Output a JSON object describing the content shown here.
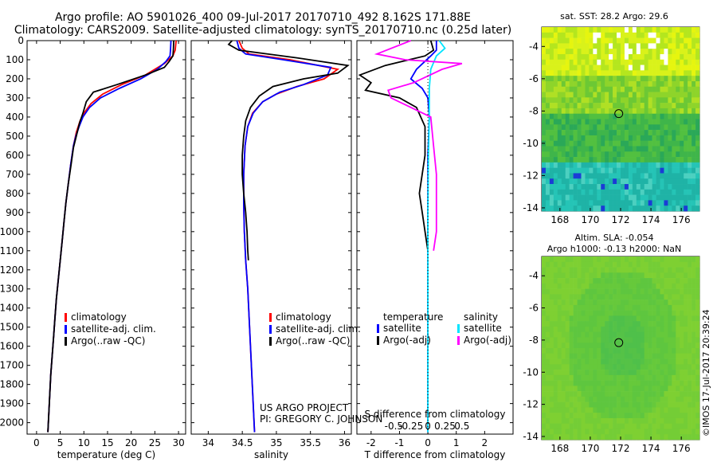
{
  "figure": {
    "title_line1": "Argo profile: AO 5901026_400 09-Jul-2017 20170710_492 8.162S 171.88E",
    "title_line2": "Climatology: CARS2009. Satellite-adjusted climatology: synTS_20170710.nc (0.25d later)",
    "credit_line1": "US ARGO PROJECT",
    "credit_line2": "PI: GREGORY C. JOHNSON",
    "timestamp": "©IMOS 17-Jul-2017 20:39:24",
    "colors": {
      "climatology": "#ff0000",
      "satellite": "#0000ff",
      "argo": "#000000",
      "satellite_salinity": "#00e5ff",
      "argo_salinity_diff": "#ff00ff"
    }
  },
  "chart_data": [
    {
      "type": "line",
      "panel": "temperature",
      "xlabel": "temperature (deg C)",
      "x_ticks": [
        0,
        5,
        10,
        15,
        20,
        25,
        30
      ],
      "xlim": [
        -2,
        31.5
      ],
      "ylim": [
        2060,
        0
      ],
      "y_ticks": [
        0,
        100,
        200,
        300,
        400,
        500,
        600,
        700,
        800,
        900,
        1000,
        1100,
        1200,
        1300,
        1400,
        1500,
        1600,
        1700,
        1800,
        1900,
        2000
      ],
      "legend": [
        "climatology",
        "satellite-adj. clim.",
        "Argo(..raw -QC)"
      ],
      "series": [
        {
          "name": "climatology",
          "color": "#ff0000",
          "points": [
            [
              29.5,
              0
            ],
            [
              29.3,
              50
            ],
            [
              28.8,
              80
            ],
            [
              27,
              120
            ],
            [
              23,
              180
            ],
            [
              18,
              230
            ],
            [
              14,
              280
            ],
            [
              11.5,
              330
            ],
            [
              10,
              380
            ],
            [
              9.2,
              420
            ],
            [
              8.4,
              480
            ],
            [
              7.8,
              550
            ],
            [
              7.2,
              650
            ],
            [
              6.7,
              750
            ],
            [
              6.2,
              850
            ],
            [
              5.8,
              950
            ],
            [
              5.4,
              1050
            ],
            [
              5,
              1150
            ],
            [
              4.6,
              1250
            ],
            [
              4.2,
              1350
            ],
            [
              3.9,
              1450
            ],
            [
              3.6,
              1550
            ],
            [
              3.3,
              1650
            ],
            [
              3,
              1750
            ],
            [
              2.8,
              1850
            ],
            [
              2.6,
              1950
            ],
            [
              2.4,
              2050
            ]
          ]
        },
        {
          "name": "satellite-adj. clim.",
          "color": "#0000ff",
          "points": [
            [
              28.4,
              0
            ],
            [
              28.3,
              50
            ],
            [
              28.2,
              80
            ],
            [
              27.3,
              110
            ],
            [
              25.5,
              150
            ],
            [
              22,
              200
            ],
            [
              17.5,
              250
            ],
            [
              13.5,
              300
            ],
            [
              11.2,
              350
            ],
            [
              9.8,
              400
            ],
            [
              9,
              450
            ],
            [
              8.3,
              500
            ],
            [
              7.8,
              550
            ],
            [
              7.2,
              650
            ],
            [
              6.7,
              750
            ],
            [
              6.2,
              850
            ],
            [
              5.8,
              950
            ],
            [
              5.4,
              1050
            ],
            [
              5,
              1150
            ],
            [
              4.6,
              1250
            ],
            [
              4.2,
              1350
            ],
            [
              3.9,
              1450
            ],
            [
              3.6,
              1550
            ],
            [
              3.3,
              1650
            ],
            [
              3,
              1750
            ],
            [
              2.8,
              1850
            ],
            [
              2.6,
              1950
            ],
            [
              2.4,
              2050
            ]
          ]
        },
        {
          "name": "Argo(..raw -QC)",
          "color": "#000000",
          "points": [
            [
              29,
              0
            ],
            [
              28.9,
              50
            ],
            [
              28.8,
              80
            ],
            [
              28,
              110
            ],
            [
              27,
              140
            ],
            [
              23,
              180
            ],
            [
              17,
              230
            ],
            [
              12,
              270
            ],
            [
              10.5,
              320
            ],
            [
              9.8,
              380
            ],
            [
              9.1,
              430
            ],
            [
              8.4,
              500
            ],
            [
              7.8,
              560
            ],
            [
              7.3,
              650
            ],
            [
              6.7,
              750
            ],
            [
              6.2,
              850
            ],
            [
              5.8,
              950
            ],
            [
              5.4,
              1050
            ],
            [
              5,
              1150
            ],
            [
              4.6,
              1250
            ],
            [
              4.2,
              1350
            ],
            [
              3.9,
              1450
            ],
            [
              3.6,
              1550
            ],
            [
              3.3,
              1650
            ],
            [
              3,
              1750
            ],
            [
              2.8,
              1850
            ],
            [
              2.6,
              1950
            ],
            [
              2.4,
              2050
            ]
          ]
        }
      ]
    },
    {
      "type": "line",
      "panel": "salinity",
      "xlabel": "salinity",
      "x_ticks": [
        34,
        34.5,
        35,
        35.5,
        36
      ],
      "xlim": [
        33.75,
        36.1
      ],
      "ylim": [
        2060,
        0
      ],
      "legend": [
        "climatology",
        "satellite-adj. clim.",
        "Argo(..raw -QC)"
      ],
      "series": [
        {
          "name": "climatology",
          "color": "#ff0000",
          "points": [
            [
              34.45,
              0
            ],
            [
              34.5,
              40
            ],
            [
              34.6,
              70
            ],
            [
              35.2,
              100
            ],
            [
              35.9,
              150
            ],
            [
              35.7,
              200
            ],
            [
              35.3,
              240
            ],
            [
              35,
              280
            ],
            [
              34.8,
              320
            ],
            [
              34.65,
              380
            ],
            [
              34.58,
              450
            ],
            [
              34.54,
              550
            ],
            [
              34.52,
              700
            ],
            [
              34.52,
              850
            ],
            [
              34.53,
              1000
            ],
            [
              34.55,
              1150
            ],
            [
              34.58,
              1300
            ],
            [
              34.6,
              1450
            ],
            [
              34.62,
              1600
            ],
            [
              34.64,
              1750
            ],
            [
              34.66,
              1900
            ],
            [
              34.68,
              2050
            ]
          ]
        },
        {
          "name": "satellite-adj. clim.",
          "color": "#0000ff",
          "points": [
            [
              34.42,
              0
            ],
            [
              34.45,
              40
            ],
            [
              34.55,
              70
            ],
            [
              35.1,
              100
            ],
            [
              35.8,
              140
            ],
            [
              35.75,
              180
            ],
            [
              35.4,
              230
            ],
            [
              35.05,
              270
            ],
            [
              34.8,
              320
            ],
            [
              34.66,
              380
            ],
            [
              34.58,
              450
            ],
            [
              34.54,
              550
            ],
            [
              34.52,
              700
            ],
            [
              34.52,
              850
            ],
            [
              34.53,
              1000
            ],
            [
              34.55,
              1150
            ],
            [
              34.58,
              1300
            ],
            [
              34.6,
              1450
            ],
            [
              34.62,
              1600
            ],
            [
              34.64,
              1750
            ],
            [
              34.66,
              1900
            ],
            [
              34.68,
              2050
            ]
          ]
        },
        {
          "name": "Argo(..raw -QC)",
          "color": "#000000",
          "points": [
            [
              34.35,
              0
            ],
            [
              34.3,
              20
            ],
            [
              34.45,
              50
            ],
            [
              35.3,
              90
            ],
            [
              36.05,
              130
            ],
            [
              35.9,
              170
            ],
            [
              35.4,
              200
            ],
            [
              34.95,
              240
            ],
            [
              34.75,
              290
            ],
            [
              34.62,
              350
            ],
            [
              34.55,
              420
            ],
            [
              34.52,
              500
            ],
            [
              34.5,
              600
            ],
            [
              34.5,
              700
            ],
            [
              34.52,
              800
            ],
            [
              34.55,
              900
            ],
            [
              34.57,
              1000
            ],
            [
              34.58,
              1100
            ],
            [
              34.59,
              1150
            ]
          ]
        }
      ]
    },
    {
      "type": "line",
      "panel": "difference",
      "xlabel": "T difference from climatology",
      "xlabel_top": "S difference from climatology",
      "x_ticks": [
        -2,
        -1,
        0,
        1,
        2
      ],
      "x_ticks_salinity": [
        "-0.5",
        "-0.25",
        "0",
        "0.25",
        "0.5"
      ],
      "xlim": [
        -2.5,
        3
      ],
      "ylim": [
        2060,
        0
      ],
      "legend": {
        "temperature_header": "temperature",
        "salinity_header": "salinity",
        "items": [
          "satellite",
          "Argo(-adj)",
          "satellite",
          "Argo(-adj)"
        ]
      },
      "series": [
        {
          "name": "satellite",
          "color": "#0000ff",
          "points": [
            [
              0.3,
              0
            ],
            [
              0.3,
              50
            ],
            [
              0.1,
              80
            ],
            [
              -0.4,
              150
            ],
            [
              -0.6,
              200
            ],
            [
              -0.2,
              250
            ],
            [
              0,
              300
            ],
            [
              0.05,
              400
            ],
            [
              0,
              600
            ],
            [
              0,
              900
            ],
            [
              0,
              1200
            ],
            [
              0,
              1600
            ],
            [
              0,
              2050
            ]
          ]
        },
        {
          "name": "Argo(-adj)",
          "color": "#000000",
          "points": [
            [
              0.1,
              0
            ],
            [
              0.2,
              50
            ],
            [
              -0.1,
              80
            ],
            [
              -1.5,
              130
            ],
            [
              -2.4,
              180
            ],
            [
              -2,
              220
            ],
            [
              -2.2,
              260
            ],
            [
              -1,
              300
            ],
            [
              -0.4,
              350
            ],
            [
              -0.1,
              450
            ],
            [
              -0.1,
              600
            ],
            [
              -0.3,
              800
            ],
            [
              -0.2,
              900
            ],
            [
              -0.1,
              1000
            ],
            [
              0,
              1100
            ]
          ]
        },
        {
          "name": "satellite",
          "color": "#00e5ff",
          "points": [
            [
              0.4,
              0
            ],
            [
              0.6,
              40
            ],
            [
              0.3,
              80
            ],
            [
              0.1,
              150
            ],
            [
              0.05,
              250
            ],
            [
              0.05,
              400
            ],
            [
              0.02,
              600
            ],
            [
              0,
              900
            ],
            [
              0,
              1200
            ],
            [
              0,
              1600
            ],
            [
              0,
              2050
            ]
          ]
        },
        {
          "name": "Argo(-adj)",
          "color": "#ff00ff",
          "points": [
            [
              -0.6,
              0
            ],
            [
              -1.8,
              70
            ],
            [
              -0.8,
              100
            ],
            [
              1.2,
              120
            ],
            [
              0.5,
              150
            ],
            [
              -0.5,
              220
            ],
            [
              -1.4,
              260
            ],
            [
              -1.3,
              300
            ],
            [
              0.1,
              400
            ],
            [
              0.2,
              550
            ],
            [
              0.3,
              700
            ],
            [
              0.3,
              850
            ],
            [
              0.3,
              1000
            ],
            [
              0.2,
              1100
            ]
          ]
        }
      ]
    },
    {
      "type": "heatmap",
      "panel": "sst_map",
      "title": "sat. SST: 28.2 Argo: 29.6",
      "x_ticks": [
        168,
        170,
        172,
        174,
        176
      ],
      "y_ticks": [
        -4,
        -6,
        -8,
        -10,
        -12,
        -14
      ],
      "xlim": [
        166.8,
        177.2
      ],
      "ylim": [
        -14.2,
        -2.8
      ],
      "marker": [
        171.88,
        -8.162
      ]
    },
    {
      "type": "heatmap",
      "panel": "sla_map",
      "title_line1": "Altim. SLA: -0.054",
      "title_line2": "Argo h1000: -0.13 h2000: NaN",
      "x_ticks": [
        168,
        170,
        172,
        174,
        176
      ],
      "y_ticks": [
        -4,
        -6,
        -8,
        -10,
        -12,
        -14
      ],
      "xlim": [
        166.8,
        177.2
      ],
      "ylim": [
        -14.2,
        -2.8
      ],
      "marker": [
        171.88,
        -8.162
      ]
    }
  ]
}
